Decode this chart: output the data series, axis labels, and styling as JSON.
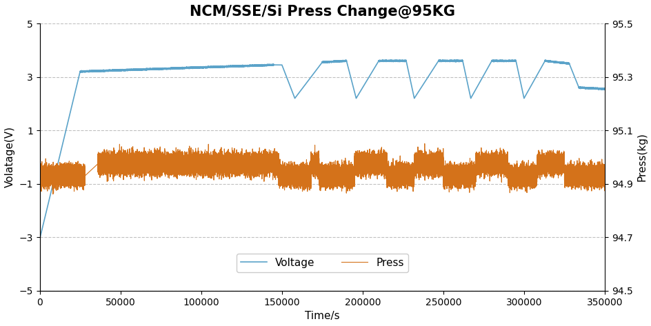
{
  "title": "NCM/SSE/Si Press Change@95KG",
  "xlabel": "Time/s",
  "ylabel_left": "Volatage(V)",
  "ylabel_right": "Press(kg)",
  "xlim": [
    0,
    350000
  ],
  "ylim_left": [
    -5,
    5
  ],
  "ylim_right": [
    94.5,
    95.5
  ],
  "yticks_left": [
    -5,
    -3,
    -1,
    1,
    3,
    5
  ],
  "yticks_right": [
    94.5,
    94.7,
    94.9,
    95.1,
    95.3,
    95.5
  ],
  "xticks": [
    0,
    50000,
    100000,
    150000,
    200000,
    250000,
    300000,
    350000
  ],
  "legend_labels": [
    "Voltage",
    "Press"
  ],
  "voltage_color": "#5BA3C9",
  "press_color": "#D4721A",
  "grid_color": "#C0C0C0",
  "background_color": "#FFFFFF",
  "title_fontsize": 15,
  "axis_fontsize": 11,
  "tick_fontsize": 10,
  "legend_fontsize": 11
}
